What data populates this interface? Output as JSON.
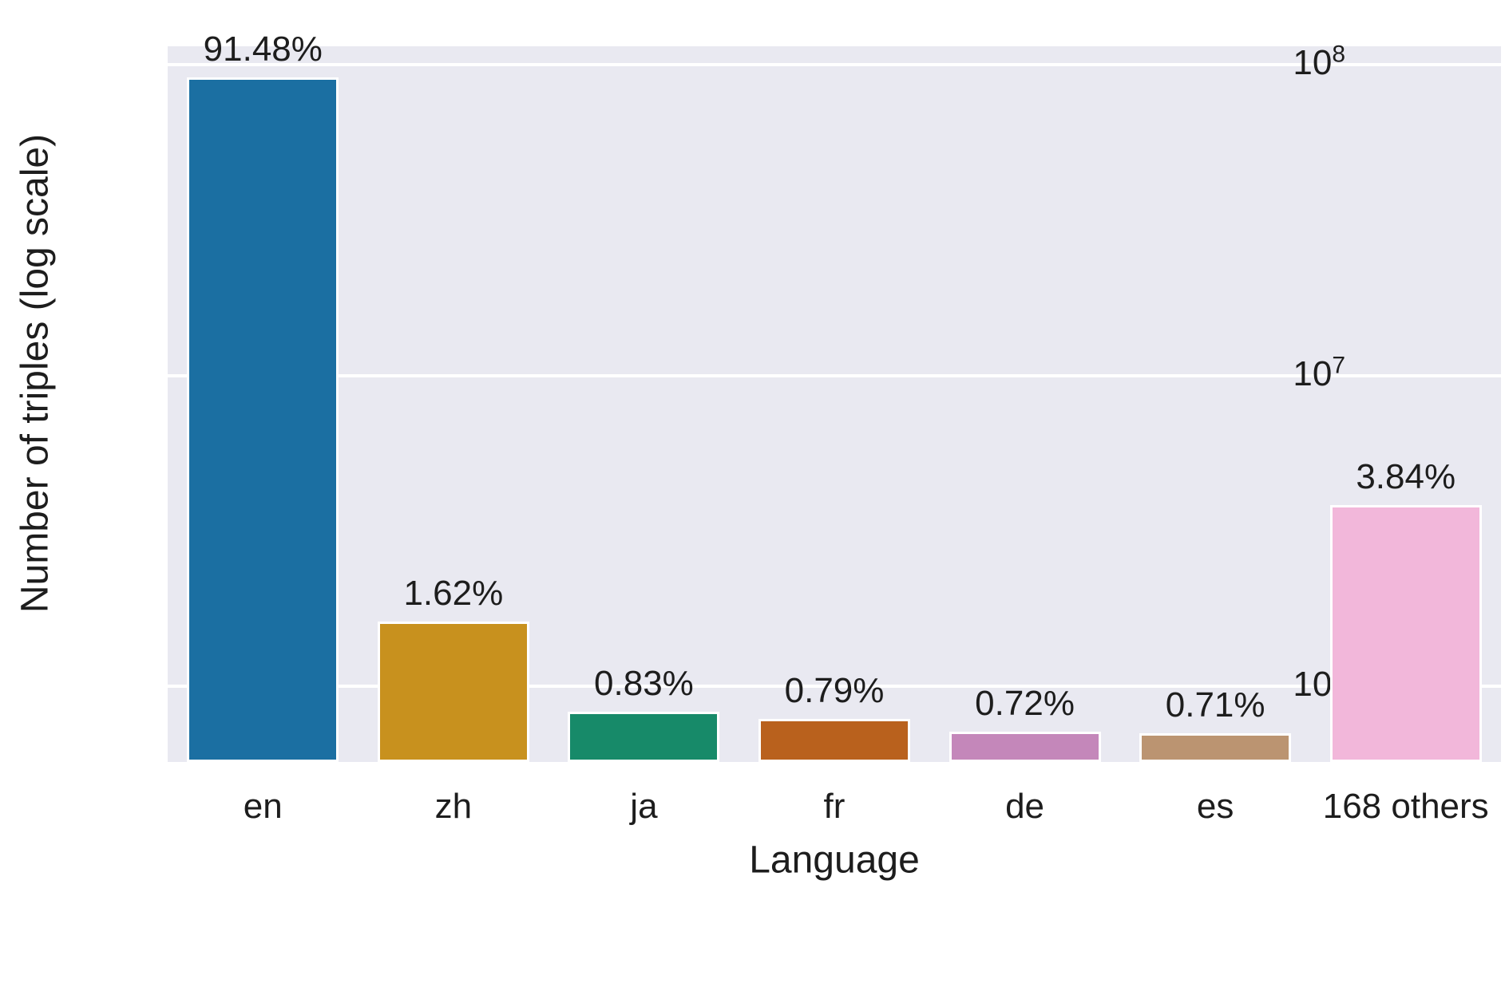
{
  "chart_data": {
    "type": "bar",
    "title": "",
    "xlabel": "Language",
    "ylabel": "Number of triples (log scale)",
    "yscale": "log",
    "ylim": [
      577000,
      114600000
    ],
    "grid": true,
    "legend": false,
    "categories": [
      "en",
      "zh",
      "ja",
      "fr",
      "de",
      "es",
      "168 others"
    ],
    "values": [
      91020000,
      1612000,
      826000,
      786000,
      716000,
      706000,
      3821000
    ],
    "bar_labels": [
      "91.48%",
      "1.62%",
      "0.83%",
      "0.79%",
      "0.72%",
      "0.71%",
      "3.84%"
    ],
    "yticks": [
      {
        "base": "10",
        "exponent": "6",
        "value": 1000000
      },
      {
        "base": "10",
        "exponent": "7",
        "value": 10000000
      },
      {
        "base": "10",
        "exponent": "8",
        "value": 100000000
      }
    ],
    "colors": {
      "bars": [
        "#1b6fa2",
        "#c8911e",
        "#178a69",
        "#b9611d",
        "#c487ba",
        "#bb9471",
        "#f2b7da"
      ],
      "plot_background": "#e9e9f1",
      "gridline": "#ffffff",
      "figure_background": "#ffffff",
      "text": "#1d1d1d"
    }
  }
}
